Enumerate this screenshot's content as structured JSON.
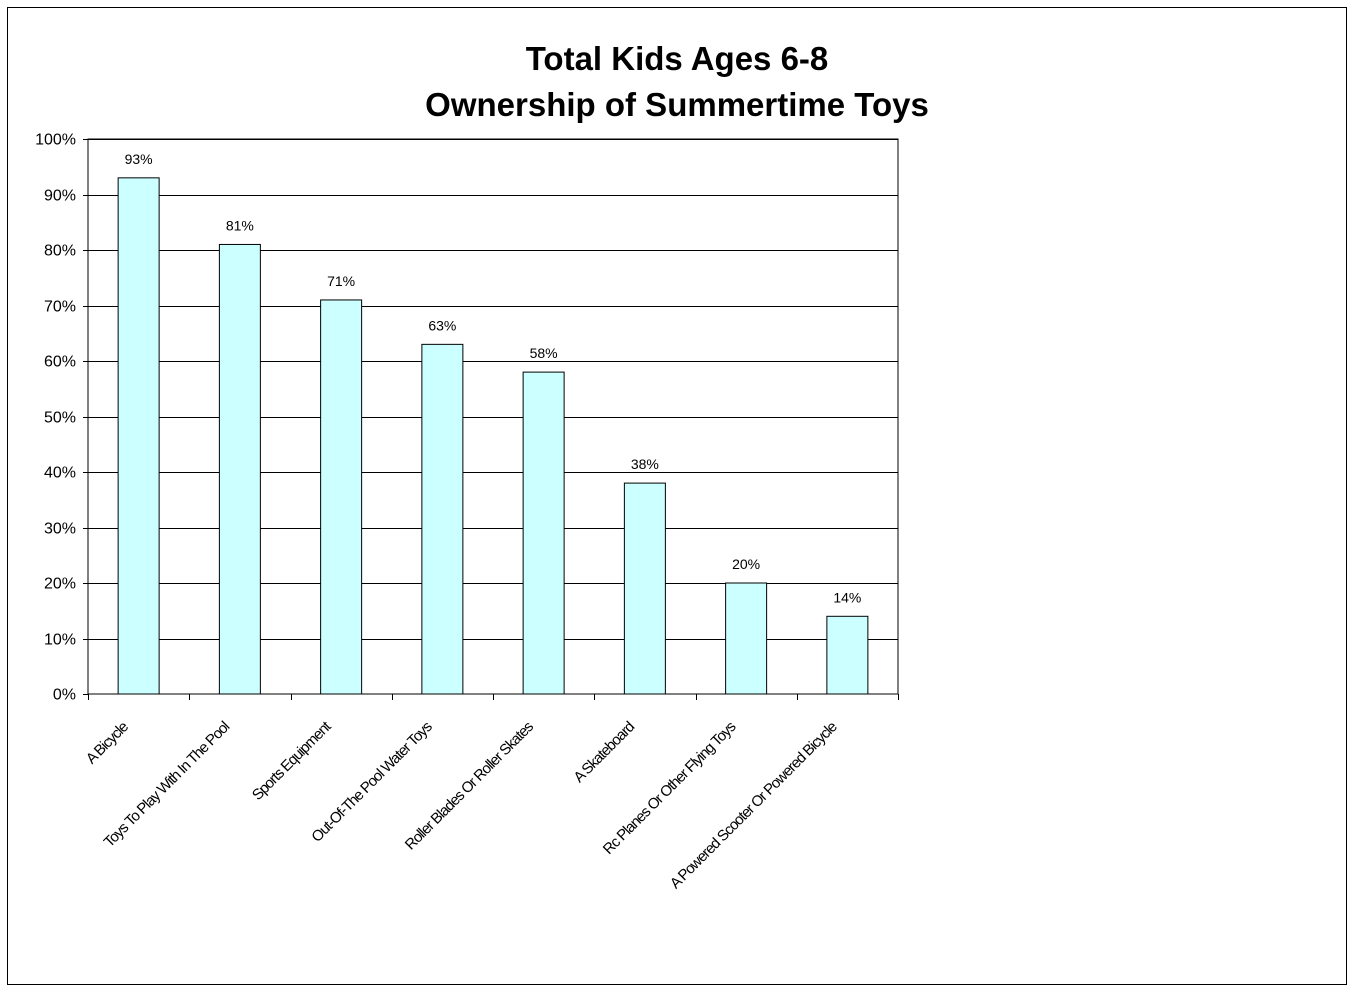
{
  "chart_data": {
    "type": "bar",
    "title": [
      "Total Kids Ages 6-8",
      "Ownership of Summertime Toys"
    ],
    "xlabel": "",
    "ylabel": "",
    "categories": [
      "A Bicycle",
      "Toys To Play With In The Pool",
      "Sports Equipment",
      "Out-Of-The Pool Water Toys",
      "Roller Blades Or Roller Skates",
      "A Skateboard",
      "Rc Planes Or Other Flying Toys",
      "A Powered Scooter Or Powered Bicycle"
    ],
    "values": [
      93,
      81,
      71,
      63,
      58,
      38,
      20,
      14
    ],
    "data_labels": [
      "93%",
      "81%",
      "71%",
      "63%",
      "58%",
      "38%",
      "20%",
      "14%"
    ],
    "ylim": [
      0,
      100
    ],
    "yticks": [
      0,
      10,
      20,
      30,
      40,
      50,
      60,
      70,
      80,
      90,
      100
    ],
    "ytick_labels": [
      "0%",
      "10%",
      "20%",
      "30%",
      "40%",
      "50%",
      "60%",
      "70%",
      "80%",
      "90%",
      "100%"
    ],
    "grid": true,
    "legend": "none",
    "bar_color": "#ccffff",
    "bar_edge_color": "#000000"
  }
}
